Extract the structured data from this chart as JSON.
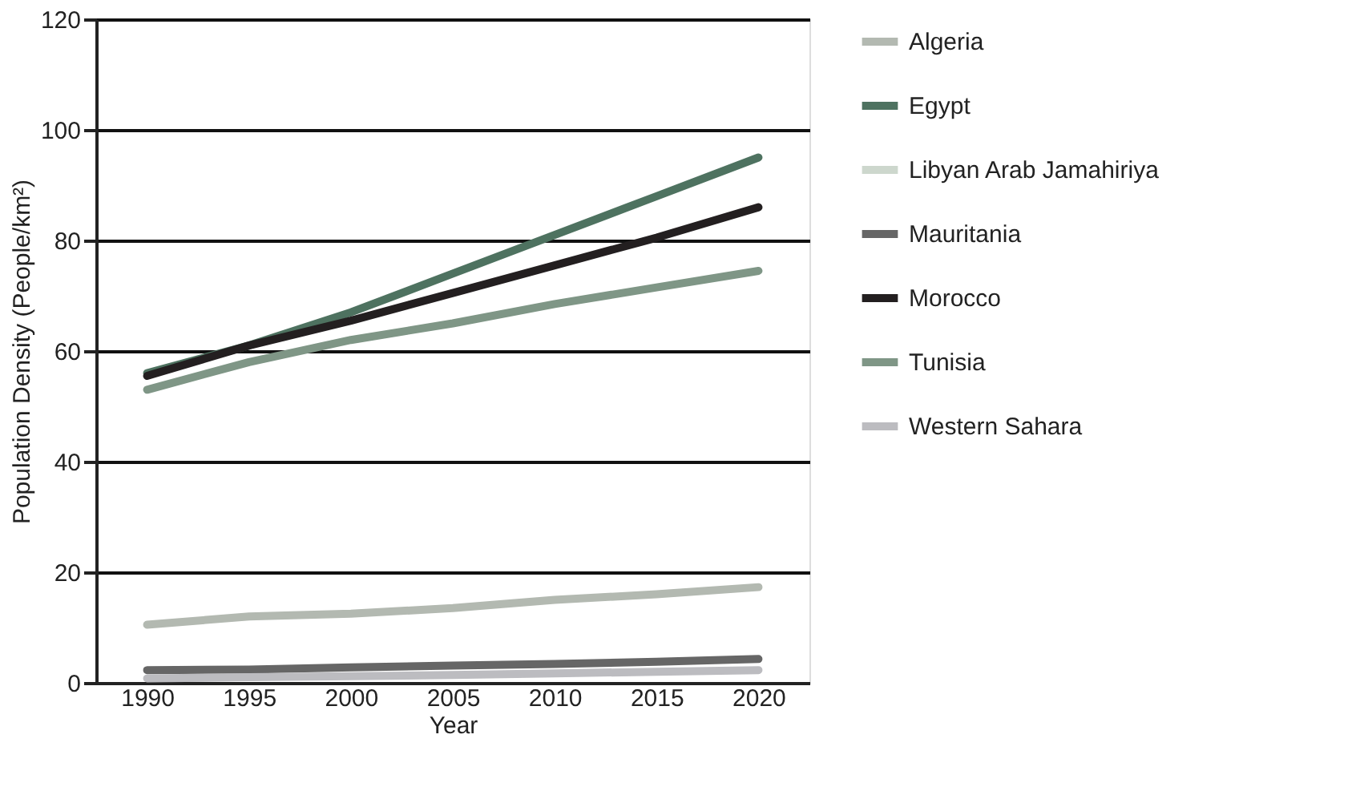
{
  "chart_data": {
    "type": "line",
    "xlabel": "Year",
    "ylabel": "Population Density (People/km²)",
    "categories": [
      "1990",
      "1995",
      "2000",
      "2005",
      "2010",
      "2015",
      "2020"
    ],
    "ylim": [
      0,
      120
    ],
    "yticks": [
      0,
      20,
      40,
      60,
      80,
      100,
      120
    ],
    "grid": "y",
    "legend": "right",
    "line_style": "solid",
    "marker": "none",
    "series": [
      {
        "name": "Algeria",
        "color": "#b3b9b1",
        "values": [
          10.5,
          12,
          12.5,
          13.5,
          15,
          16,
          17.3
        ]
      },
      {
        "name": "Egypt",
        "color": "#4e7260",
        "values": [
          56,
          61,
          67,
          74,
          81,
          88,
          95
        ]
      },
      {
        "name": "Libyan Arab Jamahiriya",
        "color": "#cdd7cd",
        "values": [
          null,
          null,
          null,
          null,
          null,
          null,
          null
        ]
      },
      {
        "name": "Mauritania",
        "color": "#666666",
        "values": [
          2.3,
          2.4,
          2.8,
          3.1,
          3.4,
          3.8,
          4.3
        ]
      },
      {
        "name": "Morocco",
        "color": "#231f20",
        "values": [
          55.5,
          61,
          65.5,
          70.5,
          75.5,
          80.5,
          86
        ]
      },
      {
        "name": "Tunisia",
        "color": "#7f9686",
        "values": [
          53,
          58,
          62,
          65,
          68.5,
          71.5,
          74.5
        ]
      },
      {
        "name": "Western Sahara",
        "color": "#bcbcc0",
        "values": [
          0.8,
          1,
          1.2,
          1.4,
          1.7,
          2,
          2.3
        ]
      }
    ]
  }
}
